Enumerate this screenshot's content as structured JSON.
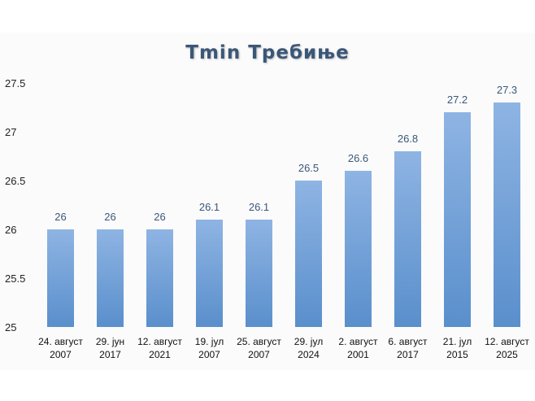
{
  "chart_data": {
    "type": "bar",
    "title": "Tmin Требиње",
    "xlabel": "",
    "ylabel": "",
    "ylim": [
      25,
      27.5
    ],
    "yticks": [
      "25",
      "25.5",
      "26",
      "26.5",
      "27",
      "27.5"
    ],
    "categories": [
      [
        "24. август",
        "2007"
      ],
      [
        "29. јун",
        "2017"
      ],
      [
        "12. август",
        "2021"
      ],
      [
        "19. јул",
        "2007"
      ],
      [
        "25. август",
        "2007"
      ],
      [
        "29. јул",
        "2024"
      ],
      [
        "2. август",
        "2001"
      ],
      [
        "6. август",
        "2017"
      ],
      [
        "21. јул",
        "2015"
      ],
      [
        "12. август",
        "2025"
      ]
    ],
    "values": [
      26,
      26,
      26,
      26.1,
      26.1,
      26.5,
      26.6,
      26.8,
      27.2,
      27.3
    ],
    "value_labels": [
      "26",
      "26",
      "26",
      "26.1",
      "26.1",
      "26.5",
      "26.6",
      "26.8",
      "27.2",
      "27.3"
    ],
    "grid": false,
    "legend": "none"
  },
  "colors": {
    "bar_top": "#8eb4e3",
    "bar_bottom": "#5a8fcc",
    "title": "#3b5778",
    "data_label": "#3b5778"
  }
}
